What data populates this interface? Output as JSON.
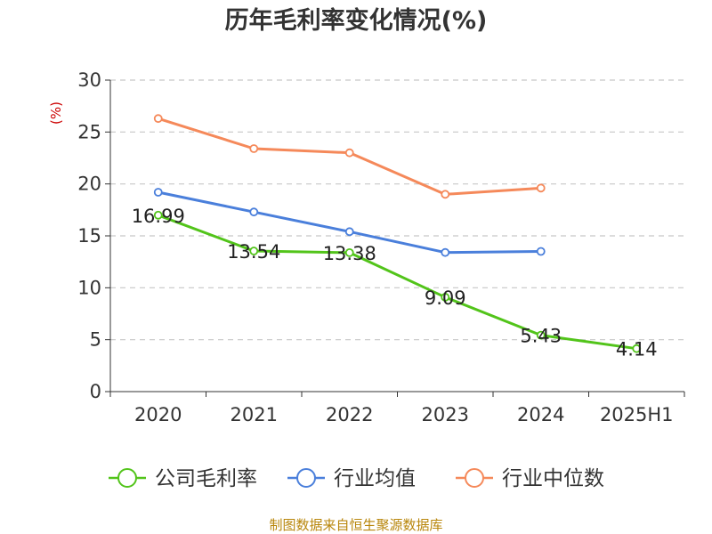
{
  "chart_data": {
    "type": "line",
    "title": "历年毛利率变化情况(%)",
    "unit_label": "(%)",
    "categories": [
      "2020",
      "2021",
      "2022",
      "2023",
      "2024",
      "2025H1"
    ],
    "ylim": [
      0,
      30
    ],
    "yticks": [
      0,
      5,
      10,
      15,
      20,
      25,
      30
    ],
    "grid": true,
    "legend_position": "bottom",
    "series": [
      {
        "name": "公司毛利率",
        "color": "#52c41a",
        "values": [
          16.99,
          13.54,
          13.38,
          9.09,
          5.43,
          4.14
        ],
        "labels": [
          "16.99",
          "13.54",
          "13.38",
          "9.09",
          "5.43",
          "4.14"
        ]
      },
      {
        "name": "行业均值",
        "color": "#4a7fdb",
        "values": [
          19.2,
          17.3,
          15.4,
          13.4,
          13.5,
          null
        ]
      },
      {
        "name": "行业中位数",
        "color": "#f5895a",
        "values": [
          26.3,
          23.4,
          23.0,
          19.0,
          19.6,
          null
        ]
      }
    ]
  },
  "source": "制图数据来自恒生聚源数据库"
}
